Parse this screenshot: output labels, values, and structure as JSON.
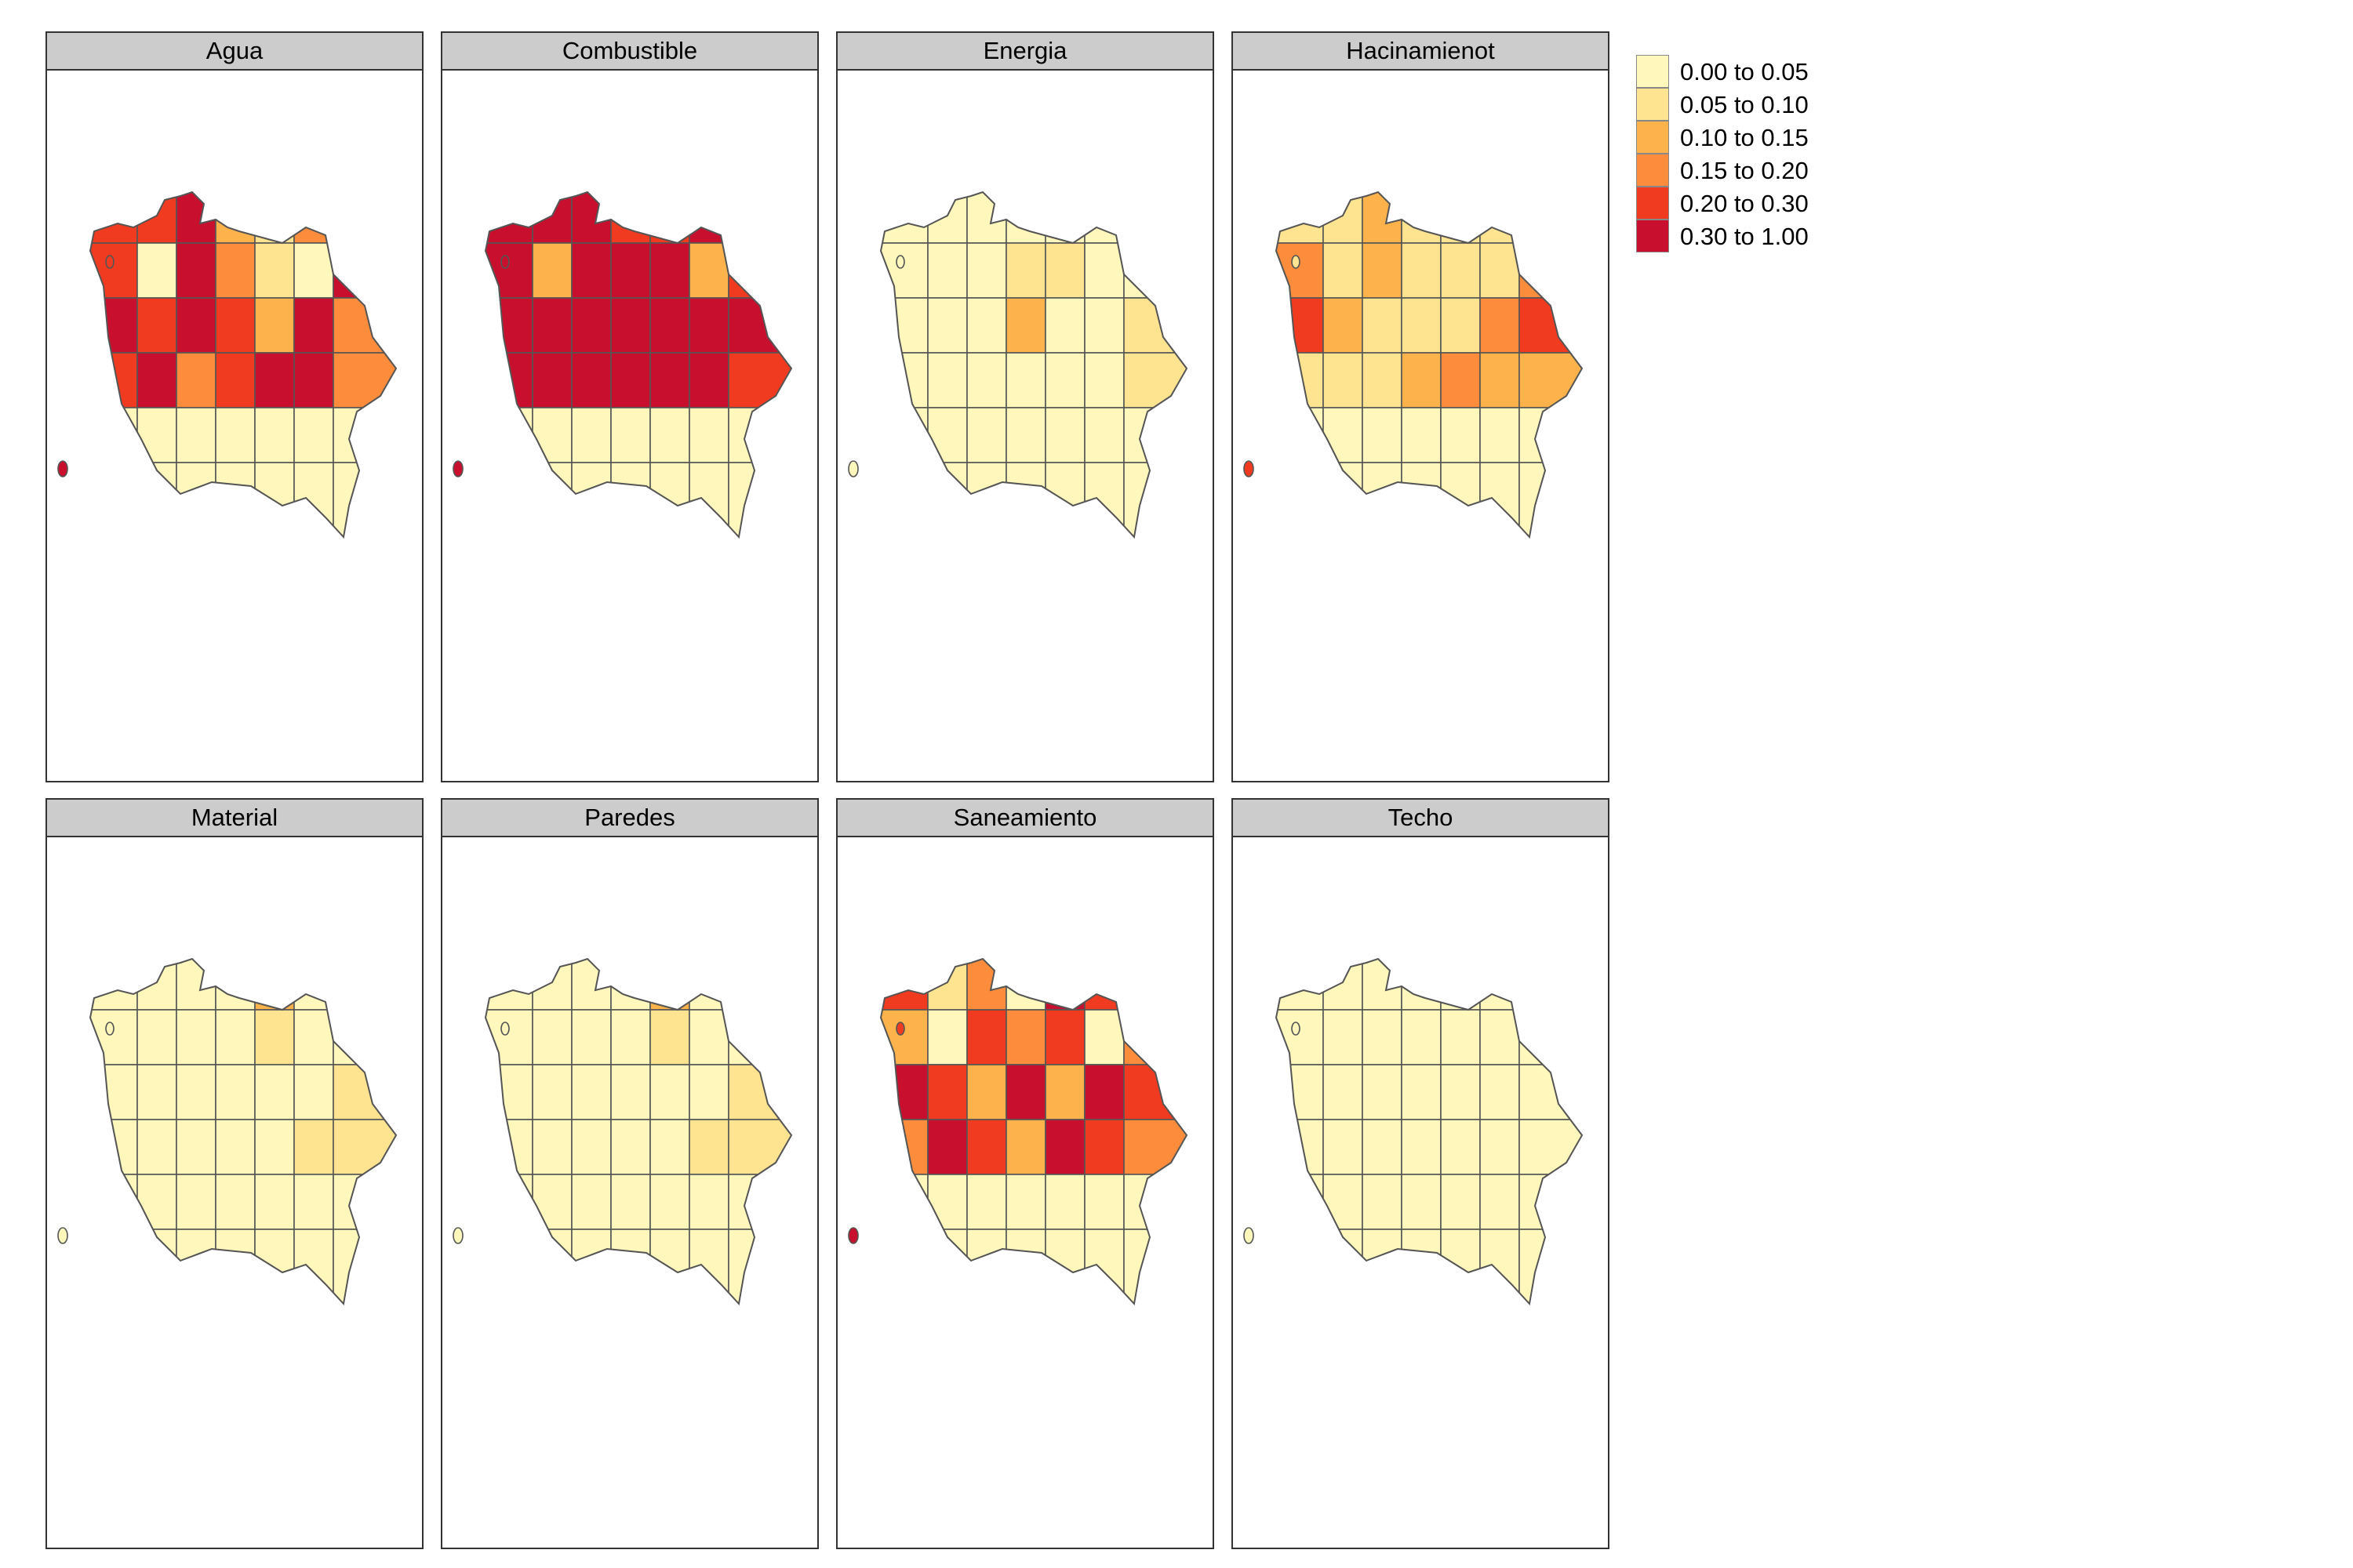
{
  "legend": {
    "classes": [
      {
        "label": "0.00 to 0.05",
        "color": "#FFF7BC"
      },
      {
        "label": "0.05 to 0.10",
        "color": "#FEE391"
      },
      {
        "label": "0.10 to 0.15",
        "color": "#FEB24C"
      },
      {
        "label": "0.15 to 0.20",
        "color": "#FD8D3C"
      },
      {
        "label": "0.20 to 0.30",
        "color": "#F03B20"
      },
      {
        "label": "0.30 to 1.00",
        "color": "#C8102E"
      }
    ]
  },
  "panels": [
    {
      "title": "Agua",
      "classes": [
        4,
        4,
        5,
        2,
        1,
        3,
        5,
        4,
        0,
        5,
        3,
        1,
        0,
        5,
        5,
        4,
        5,
        4,
        2,
        5,
        3,
        4,
        5,
        3,
        4,
        5,
        5,
        3
      ]
    },
    {
      "title": "Combustible",
      "classes": [
        5,
        5,
        5,
        4,
        4,
        5,
        5,
        5,
        2,
        5,
        5,
        5,
        2,
        4,
        5,
        5,
        5,
        5,
        5,
        5,
        5,
        5,
        5,
        5,
        5,
        5,
        5,
        4
      ]
    },
    {
      "title": "Energia",
      "classes": [
        0,
        0,
        0,
        0,
        0,
        0,
        0,
        0,
        0,
        0,
        1,
        1,
        0,
        0,
        0,
        0,
        0,
        2,
        0,
        0,
        1,
        0,
        0,
        0,
        0,
        0,
        0,
        1
      ]
    },
    {
      "title": "Hacinamienot",
      "classes": [
        1,
        1,
        2,
        1,
        1,
        1,
        2,
        3,
        1,
        2,
        1,
        1,
        1,
        3,
        4,
        2,
        1,
        1,
        1,
        3,
        4,
        1,
        1,
        1,
        2,
        3,
        2,
        2
      ]
    },
    {
      "title": "Material",
      "classes": [
        0,
        0,
        0,
        0,
        2,
        0,
        0,
        0,
        0,
        0,
        0,
        1,
        0,
        0,
        0,
        0,
        0,
        0,
        0,
        0,
        1,
        0,
        0,
        0,
        0,
        0,
        1,
        1
      ]
    },
    {
      "title": "Paredes",
      "classes": [
        0,
        0,
        0,
        0,
        2,
        0,
        0,
        0,
        0,
        0,
        0,
        1,
        0,
        0,
        0,
        0,
        0,
        0,
        0,
        0,
        1,
        0,
        0,
        0,
        0,
        0,
        1,
        1
      ]
    },
    {
      "title": "Saneamiento",
      "classes": [
        4,
        1,
        3,
        0,
        5,
        4,
        3,
        2,
        0,
        4,
        3,
        4,
        0,
        3,
        5,
        4,
        2,
        5,
        2,
        5,
        4,
        3,
        5,
        4,
        2,
        5,
        4,
        3
      ]
    },
    {
      "title": "Techo",
      "classes": [
        0,
        0,
        0,
        0,
        0,
        0,
        0,
        0,
        0,
        0,
        0,
        0,
        0,
        0,
        0,
        0,
        0,
        0,
        0,
        0,
        0,
        0,
        0,
        0,
        0,
        0,
        0,
        0
      ]
    }
  ]
}
